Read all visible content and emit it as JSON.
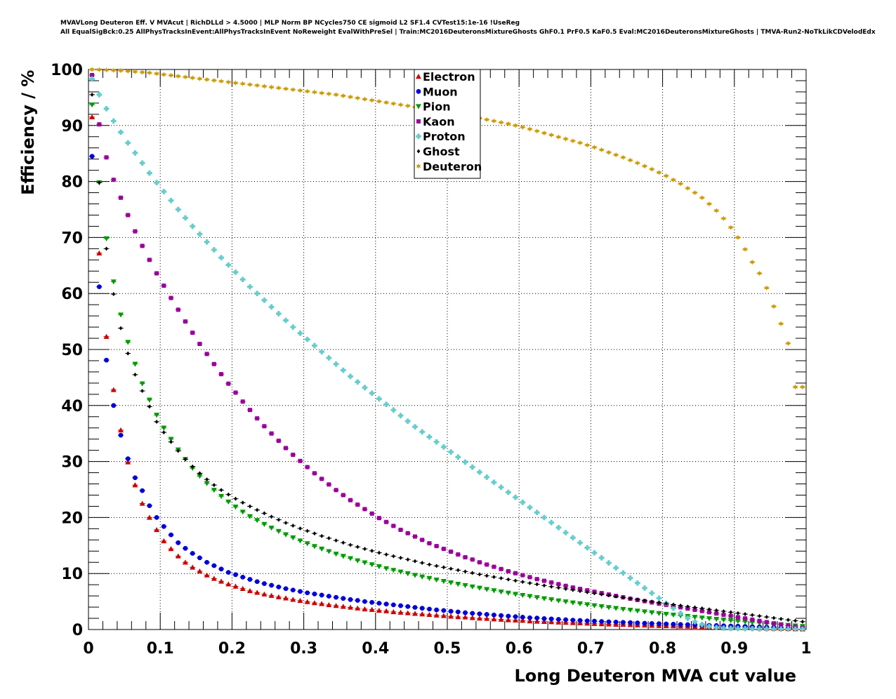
{
  "header": {
    "line1": "MVAVLong Deuteron Eff. V MVAcut | RichDLLd > 4.5000 | MLP Norm BP NCycles750 CE sigmoid L2 SF1.4 CVTest15:1e-16 !UseReg",
    "line2": "All EqualSigBck:0.25 AllPhysTracksInEvent:AllPhysTracksInEvent NoReweight EvalWithPreSel | Train:MC2016DeuteronsMixtureGhosts GhF0.1 PrF0.5 KaF0.5 Eval:MC2016DeuteronsMixtureGhosts | TMVA-Run2-NoTkLikCDVelodEdx"
  },
  "chart_data": {
    "type": "scatter",
    "title": "",
    "xlabel": "Long Deuteron MVA cut value",
    "ylabel": "Efficiency / %",
    "xlim": [
      0,
      1
    ],
    "ylim": [
      0,
      100
    ],
    "x_ticks": [
      "0",
      "0.1",
      "0.2",
      "0.3",
      "0.4",
      "0.5",
      "0.6",
      "0.7",
      "0.8",
      "0.9",
      "1"
    ],
    "y_ticks": [
      "0",
      "10",
      "20",
      "30",
      "40",
      "50",
      "60",
      "70",
      "80",
      "90",
      "100"
    ],
    "grid": true,
    "legend_position": "top-center",
    "x": [
      0.005,
      0.015,
      0.025,
      0.035,
      0.045,
      0.055,
      0.065,
      0.075,
      0.085,
      0.095,
      0.105,
      0.115,
      0.125,
      0.135,
      0.145,
      0.155,
      0.165,
      0.175,
      0.185,
      0.195,
      0.205,
      0.215,
      0.225,
      0.235,
      0.245,
      0.255,
      0.265,
      0.275,
      0.285,
      0.295,
      0.305,
      0.315,
      0.325,
      0.335,
      0.345,
      0.355,
      0.365,
      0.375,
      0.385,
      0.395,
      0.405,
      0.415,
      0.425,
      0.435,
      0.445,
      0.455,
      0.465,
      0.475,
      0.485,
      0.495,
      0.505,
      0.515,
      0.525,
      0.535,
      0.545,
      0.555,
      0.565,
      0.575,
      0.585,
      0.595,
      0.605,
      0.615,
      0.625,
      0.635,
      0.645,
      0.655,
      0.665,
      0.675,
      0.685,
      0.695,
      0.705,
      0.715,
      0.725,
      0.735,
      0.745,
      0.755,
      0.765,
      0.775,
      0.785,
      0.795,
      0.805,
      0.815,
      0.825,
      0.835,
      0.845,
      0.855,
      0.865,
      0.875,
      0.885,
      0.895,
      0.905,
      0.915,
      0.925,
      0.935,
      0.945,
      0.955,
      0.965,
      0.975,
      0.985,
      0.995
    ],
    "series": [
      {
        "name": "Electron",
        "color": "#cc0000",
        "marker": "triangle-up",
        "values": [
          91.5,
          67.2,
          52.3,
          42.8,
          35.6,
          29.9,
          25.8,
          22.5,
          20.0,
          17.8,
          15.8,
          14.4,
          13.1,
          12.0,
          11.1,
          10.4,
          9.7,
          9.1,
          8.6,
          8.1,
          7.7,
          7.3,
          6.9,
          6.6,
          6.3,
          6.05,
          5.8,
          5.6,
          5.35,
          5.15,
          4.95,
          4.75,
          4.6,
          4.4,
          4.25,
          4.1,
          3.95,
          3.8,
          3.65,
          3.55,
          3.4,
          3.3,
          3.15,
          3.05,
          2.95,
          2.85,
          2.75,
          2.65,
          2.55,
          2.45,
          2.35,
          2.25,
          2.2,
          2.1,
          2.0,
          1.95,
          1.85,
          1.8,
          1.7,
          1.65,
          1.6,
          1.5,
          1.45,
          1.4,
          1.35,
          1.3,
          1.25,
          1.2,
          1.15,
          1.1,
          1.05,
          1.0,
          0.95,
          0.9,
          0.88,
          0.84,
          0.8,
          0.76,
          0.72,
          0.68,
          0.65,
          0.62,
          0.58,
          0.55,
          0.52,
          0.49,
          0.46,
          0.43,
          0.4,
          0.37,
          0.34,
          0.31,
          0.28,
          0.25,
          0.22,
          0.19,
          0.16,
          0.13,
          0.1,
          0.07
        ]
      },
      {
        "name": "Muon",
        "color": "#0000dd",
        "marker": "circle",
        "values": [
          84.5,
          61.2,
          48.1,
          40.0,
          34.7,
          30.5,
          27.1,
          24.8,
          22.1,
          20.0,
          18.4,
          16.9,
          15.5,
          14.5,
          13.6,
          12.8,
          12.0,
          11.4,
          10.8,
          10.2,
          9.8,
          9.35,
          8.95,
          8.55,
          8.2,
          7.9,
          7.6,
          7.3,
          7.05,
          6.8,
          6.55,
          6.35,
          6.15,
          5.95,
          5.75,
          5.55,
          5.35,
          5.2,
          5.0,
          4.85,
          4.7,
          4.55,
          4.4,
          4.25,
          4.1,
          3.95,
          3.8,
          3.65,
          3.5,
          3.4,
          3.25,
          3.15,
          3.0,
          2.9,
          2.8,
          2.7,
          2.6,
          2.5,
          2.4,
          2.3,
          2.2,
          2.1,
          2.05,
          1.95,
          1.9,
          1.82,
          1.75,
          1.68,
          1.62,
          1.55,
          1.5,
          1.44,
          1.38,
          1.33,
          1.28,
          1.23,
          1.18,
          1.13,
          1.08,
          1.04,
          1.0,
          0.95,
          0.91,
          0.87,
          0.83,
          0.79,
          0.75,
          0.71,
          0.67,
          0.63,
          0.59,
          0.55,
          0.51,
          0.47,
          0.43,
          0.39,
          0.35,
          0.3,
          0.25,
          0.2
        ]
      },
      {
        "name": "Pion",
        "color": "#009900",
        "marker": "triangle-down",
        "values": [
          93.7,
          79.8,
          69.8,
          62.1,
          56.2,
          51.3,
          47.4,
          43.9,
          41.0,
          38.3,
          36.0,
          34.0,
          32.1,
          30.4,
          28.8,
          27.4,
          26.1,
          24.9,
          23.8,
          22.8,
          21.9,
          21.0,
          20.2,
          19.5,
          18.8,
          18.15,
          17.55,
          16.95,
          16.4,
          15.85,
          15.35,
          14.85,
          14.4,
          13.95,
          13.5,
          13.1,
          12.7,
          12.3,
          11.95,
          11.6,
          11.25,
          10.9,
          10.6,
          10.3,
          10.0,
          9.7,
          9.42,
          9.15,
          8.88,
          8.62,
          8.37,
          8.12,
          7.88,
          7.64,
          7.41,
          7.18,
          6.96,
          6.74,
          6.53,
          6.32,
          6.12,
          5.92,
          5.72,
          5.53,
          5.34,
          5.15,
          4.97,
          4.79,
          4.62,
          4.45,
          4.28,
          4.11,
          3.95,
          3.79,
          3.63,
          3.48,
          3.33,
          3.18,
          3.03,
          2.89,
          2.75,
          2.61,
          2.48,
          2.35,
          2.22,
          2.09,
          1.97,
          1.85,
          1.73,
          1.61,
          1.5,
          1.39,
          1.28,
          1.17,
          1.07,
          0.97,
          0.87,
          0.77,
          0.67,
          0.57
        ]
      },
      {
        "name": "Kaon",
        "color": "#990099",
        "marker": "square",
        "values": [
          99.0,
          90.2,
          84.3,
          80.3,
          77.1,
          74.0,
          71.1,
          68.5,
          66.0,
          63.6,
          61.4,
          59.2,
          57.1,
          55.0,
          53.0,
          51.0,
          49.2,
          47.4,
          45.6,
          43.9,
          42.3,
          40.7,
          39.2,
          37.7,
          36.3,
          35.0,
          33.7,
          32.4,
          31.2,
          30.1,
          29.0,
          27.9,
          26.9,
          25.9,
          24.9,
          24.0,
          23.1,
          22.3,
          21.5,
          20.7,
          19.9,
          19.2,
          18.5,
          17.8,
          17.2,
          16.6,
          16.0,
          15.4,
          14.9,
          14.4,
          13.9,
          13.4,
          12.9,
          12.5,
          12.0,
          11.6,
          11.2,
          10.8,
          10.4,
          10.05,
          9.7,
          9.35,
          9.0,
          8.7,
          8.4,
          8.1,
          7.8,
          7.5,
          7.25,
          7.0,
          6.75,
          6.5,
          6.25,
          6.0,
          5.75,
          5.5,
          5.28,
          5.06,
          4.84,
          4.62,
          4.4,
          4.18,
          3.96,
          3.74,
          3.52,
          3.3,
          3.08,
          2.86,
          2.64,
          2.42,
          2.2,
          1.98,
          1.76,
          1.54,
          1.32,
          1.1,
          0.9,
          0.7,
          0.5,
          0.3
        ]
      },
      {
        "name": "Proton",
        "color": "#66cccc",
        "marker": "cross",
        "values": [
          98.3,
          95.5,
          93.0,
          90.8,
          88.8,
          86.9,
          85.1,
          83.3,
          81.5,
          79.8,
          78.2,
          76.6,
          75.0,
          73.5,
          72.0,
          70.6,
          69.2,
          67.8,
          66.4,
          65.1,
          63.8,
          62.5,
          61.2,
          60.0,
          58.8,
          57.6,
          56.4,
          55.2,
          54.0,
          52.9,
          51.8,
          50.7,
          49.6,
          48.5,
          47.4,
          46.3,
          45.2,
          44.2,
          43.2,
          42.2,
          41.2,
          40.2,
          39.2,
          38.2,
          37.2,
          36.2,
          35.3,
          34.4,
          33.5,
          32.6,
          31.7,
          30.8,
          29.9,
          29.0,
          28.1,
          27.2,
          26.3,
          25.4,
          24.5,
          23.6,
          22.7,
          21.8,
          20.9,
          20.0,
          19.1,
          18.2,
          17.3,
          16.4,
          15.5,
          14.6,
          13.7,
          12.8,
          11.9,
          11.0,
          10.1,
          9.2,
          8.3,
          7.4,
          6.5,
          5.6,
          4.7,
          3.8,
          2.9,
          2.0,
          1.4,
          0.9,
          0.55,
          0.35,
          0.25,
          0.2,
          0.18,
          0.16,
          0.14,
          0.12,
          0.11,
          0.1,
          0.09,
          0.08,
          0.07,
          0.06
        ]
      },
      {
        "name": "Ghost",
        "color": "#000000",
        "marker": "diamond",
        "values": [
          95.5,
          79.8,
          68.0,
          59.9,
          53.8,
          49.3,
          45.5,
          42.6,
          39.8,
          37.1,
          35.2,
          33.5,
          31.9,
          30.4,
          29.1,
          27.9,
          26.8,
          25.8,
          24.9,
          24.1,
          23.35,
          22.65,
          22.0,
          21.35,
          20.75,
          20.15,
          19.6,
          19.05,
          18.55,
          18.05,
          17.6,
          17.15,
          16.7,
          16.3,
          15.9,
          15.5,
          15.1,
          14.75,
          14.4,
          14.05,
          13.7,
          13.4,
          13.1,
          12.8,
          12.5,
          12.2,
          11.9,
          11.6,
          11.35,
          11.1,
          10.85,
          10.6,
          10.35,
          10.1,
          9.85,
          9.6,
          9.38,
          9.16,
          8.94,
          8.72,
          8.5,
          8.29,
          8.08,
          7.87,
          7.66,
          7.46,
          7.26,
          7.06,
          6.86,
          6.66,
          6.47,
          6.28,
          6.09,
          5.9,
          5.71,
          5.53,
          5.35,
          5.17,
          4.99,
          4.81,
          4.63,
          4.45,
          4.28,
          4.11,
          3.94,
          3.77,
          3.6,
          3.43,
          3.26,
          3.09,
          2.92,
          2.75,
          2.58,
          2.41,
          2.24,
          2.07,
          1.9,
          1.73,
          1.56,
          1.4
        ]
      },
      {
        "name": "Deuteron",
        "color": "#cc9900",
        "marker": "star",
        "values": [
          100.0,
          99.95,
          99.9,
          99.85,
          99.8,
          99.7,
          99.6,
          99.5,
          99.4,
          99.25,
          99.1,
          98.95,
          98.8,
          98.65,
          98.5,
          98.35,
          98.2,
          98.05,
          97.9,
          97.75,
          97.6,
          97.45,
          97.3,
          97.15,
          97.0,
          96.85,
          96.7,
          96.55,
          96.4,
          96.25,
          96.1,
          95.95,
          95.8,
          95.65,
          95.5,
          95.3,
          95.1,
          94.9,
          94.7,
          94.5,
          94.3,
          94.1,
          93.9,
          93.7,
          93.5,
          93.3,
          93.1,
          92.9,
          92.7,
          92.5,
          92.3,
          92.05,
          91.8,
          91.55,
          91.3,
          91.05,
          90.8,
          90.55,
          90.3,
          90.0,
          89.7,
          89.35,
          89.0,
          88.65,
          88.3,
          87.95,
          87.6,
          87.25,
          86.9,
          86.5,
          86.1,
          85.65,
          85.2,
          84.75,
          84.3,
          83.8,
          83.3,
          82.75,
          82.2,
          81.6,
          81.0,
          80.3,
          79.6,
          78.8,
          78.0,
          77.1,
          76.0,
          74.8,
          73.4,
          71.8,
          70.0,
          67.9,
          65.6,
          63.6,
          61.0,
          57.7,
          54.6,
          51.1,
          43.3,
          43.3
        ]
      }
    ]
  }
}
